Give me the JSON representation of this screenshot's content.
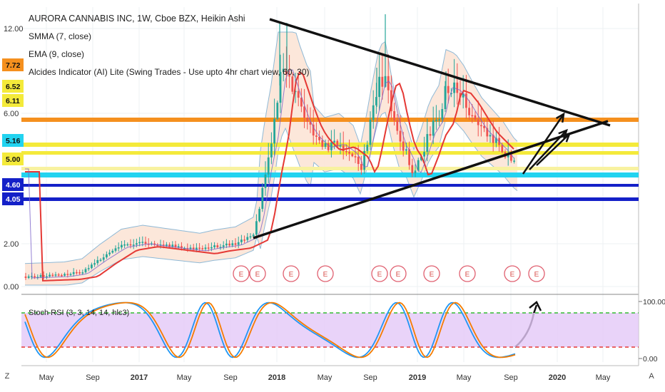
{
  "legend": {
    "title": "AURORA CANNABIS INC, 1W, Cboe BZX, Heikin Ashi",
    "smma": "SMMA (7, close)",
    "ema": "EMA (9, close)",
    "indicator": "Alcides Indicator (AI) Lite (Swing Trades - Use upto 4hr chart view, 60, 30)",
    "rsi": "Stoch RSI (3, 3, 14, 14, hlc3)"
  },
  "colors": {
    "bull": "#26a69a",
    "bear": "#ef5350",
    "ema": "#e53935",
    "smma": "#7b61c9",
    "band": "#fbe3d3",
    "band_edge": "#8fb9d6",
    "trend": "#111111",
    "orange": "#f5901e",
    "yellow": "#f4ea3a",
    "cyan": "#22d3f0",
    "blue": "#1420c8",
    "rsi_k": "#2196f3",
    "rsi_d": "#f57c00",
    "rsi_fill": "#e3c8f7",
    "rsi_upper": "#33bb33",
    "rsi_lower": "#e53935",
    "earnings": "#e06070"
  },
  "price_axis_labels": [
    "12.00",
    "6.00",
    "2.00",
    "0.00"
  ],
  "rsi_axis_labels": [
    "100.00",
    "0.00"
  ],
  "time_axis_labels": [
    "May",
    "Sep",
    "2017",
    "May",
    "Sep",
    "2018",
    "May",
    "Sep",
    "2019",
    "May",
    "Sep",
    "2020",
    "May"
  ],
  "earnings_label": "E",
  "corner_left": "Z",
  "corner_right": "A",
  "chart_data": {
    "type": "candlestick",
    "title": "AURORA CANNABIS INC, 1W, Cboe BZX, Heikin Ashi",
    "price_scale": "log",
    "ylim": [
      0,
      12
    ],
    "y_ticks": [
      "12.00",
      "6.00",
      "2.00",
      "0.00"
    ],
    "x_ticks": [
      "May",
      "Sep",
      "2017",
      "May",
      "Sep",
      "2018",
      "May",
      "Sep",
      "2019",
      "May",
      "Sep",
      "2020",
      "May"
    ],
    "price_levels": [
      {
        "label": "7.72",
        "value": 7.72,
        "color": "orange",
        "line": true
      },
      {
        "label": "6.52",
        "value": 6.52,
        "color": "yellow",
        "line": false
      },
      {
        "label": "6.11",
        "value": 6.11,
        "color": "yellow",
        "line": false
      },
      {
        "label": "5.16",
        "value": 5.16,
        "color": "cyan",
        "line": true
      },
      {
        "label": "5.00",
        "value": 5.0,
        "color": "yellow",
        "line": true
      },
      {
        "label": "4.60",
        "value": 4.6,
        "color": "blue",
        "line": true
      },
      {
        "label": "4.05",
        "value": 4.05,
        "color": "blue",
        "line": true
      }
    ],
    "earnings_count": 10,
    "trendlines": [
      "upper",
      "lower"
    ],
    "rsi": {
      "upper": 80,
      "lower": 20,
      "ylim": [
        0,
        100
      ]
    }
  }
}
